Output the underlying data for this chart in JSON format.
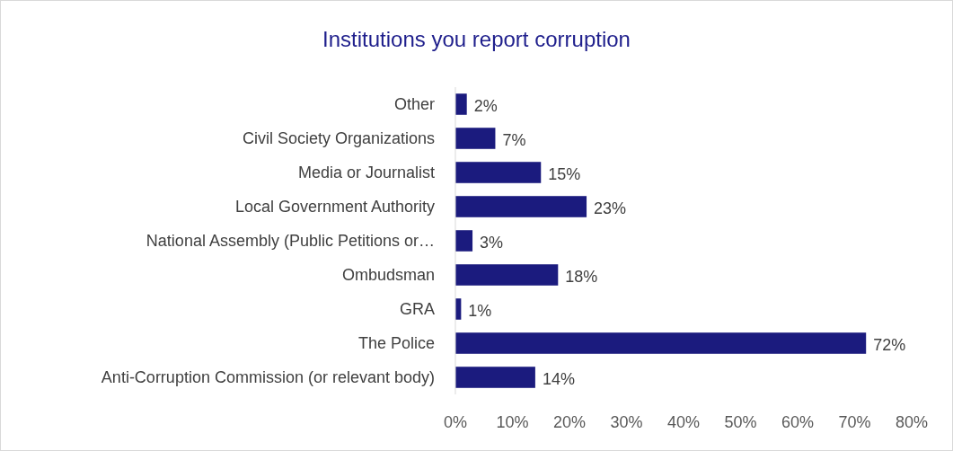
{
  "chart_data": {
    "type": "bar",
    "orientation": "horizontal",
    "title": "Institutions you report corruption",
    "categories": [
      "Other",
      "Civil Society Organizations",
      "Media or Journalist ",
      "Local Government Authority",
      "National Assembly (Public Petitions or…",
      "Ombudsman",
      "GRA",
      "The Police",
      "Anti-Corruption Commission (or relevant body)"
    ],
    "values": [
      2,
      7,
      15,
      23,
      3,
      18,
      1,
      72,
      14
    ],
    "value_labels": [
      "2%",
      "7%",
      "15%",
      "23%",
      "3%",
      "18%",
      "1%",
      "72%",
      "14%"
    ],
    "color": "#1b1b7e",
    "xlim": [
      0,
      80
    ],
    "xticks": [
      {
        "value": 0,
        "label": "0%"
      },
      {
        "value": 10,
        "label": "10%"
      },
      {
        "value": 20,
        "label": "20%"
      },
      {
        "value": 30,
        "label": "30%"
      },
      {
        "value": 40,
        "label": "40%"
      },
      {
        "value": 50,
        "label": "50%"
      },
      {
        "value": 60,
        "label": "60%"
      },
      {
        "value": 70,
        "label": "70%"
      },
      {
        "value": 80,
        "label": "80%"
      }
    ],
    "grid": false
  }
}
